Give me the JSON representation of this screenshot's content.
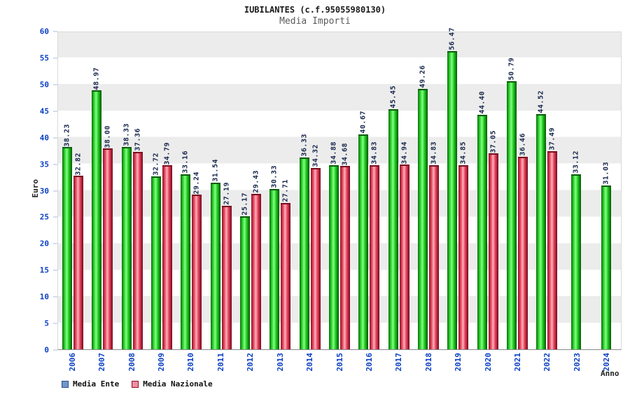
{
  "header": {
    "title": "IUBILANTES (c.f.95055980130)",
    "subtitle": "Media Importi"
  },
  "chart_data": {
    "type": "bar",
    "title": "IUBILANTES (c.f.95055980130)",
    "subtitle": "Media Importi",
    "xlabel": "Anno",
    "ylabel": "Euro",
    "ylim": [
      0,
      60
    ],
    "ytick_step": 5,
    "grid": "horizontal-bands",
    "legend_position": "bottom-left",
    "categories": [
      "2006",
      "2007",
      "2008",
      "2009",
      "2010",
      "2011",
      "2012",
      "2013",
      "2014",
      "2015",
      "2016",
      "2017",
      "2018",
      "2019",
      "2020",
      "2021",
      "2022",
      "2023",
      "2024"
    ],
    "series": [
      {
        "name": "Media Ente",
        "bar_color": "#18c418",
        "legend_color": "#7296cc",
        "legend_border": "#2b4d86",
        "values": [
          38.23,
          48.97,
          38.33,
          32.72,
          33.16,
          31.54,
          25.17,
          30.33,
          36.33,
          34.88,
          40.67,
          45.45,
          49.26,
          56.47,
          44.4,
          50.79,
          44.52,
          33.12,
          31.03
        ]
      },
      {
        "name": "Media Nazionale",
        "bar_color": "#e03a55",
        "legend_color": "#ef8fa0",
        "legend_border": "#8e1024",
        "values": [
          32.82,
          38.0,
          37.36,
          34.79,
          29.24,
          27.19,
          29.43,
          27.71,
          34.32,
          34.68,
          34.83,
          34.94,
          34.83,
          34.85,
          37.05,
          36.46,
          37.49,
          null,
          null
        ]
      }
    ],
    "yticks": [
      0,
      5,
      10,
      15,
      20,
      25,
      30,
      35,
      40,
      45,
      50,
      55,
      60
    ]
  }
}
